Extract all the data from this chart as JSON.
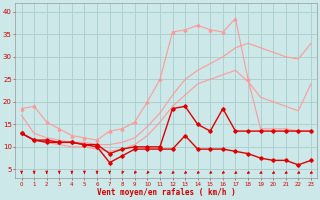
{
  "background_color": "#cce8e8",
  "grid_color": "#aacccc",
  "xlabel": "Vent moyen/en rafales ( km/h )",
  "xlabel_color": "#cc0000",
  "tick_color": "#cc0000",
  "ylim": [
    3,
    42
  ],
  "xlim": [
    -0.5,
    23.5
  ],
  "yticks": [
    5,
    10,
    15,
    20,
    25,
    30,
    35,
    40
  ],
  "xticks": [
    0,
    1,
    2,
    3,
    4,
    5,
    6,
    7,
    8,
    9,
    10,
    11,
    12,
    13,
    14,
    15,
    16,
    17,
    18,
    19,
    20,
    21,
    22,
    23
  ],
  "x": [
    0,
    1,
    2,
    3,
    4,
    5,
    6,
    7,
    8,
    9,
    10,
    11,
    12,
    13,
    14,
    15,
    16,
    17,
    18,
    19,
    20,
    21,
    22,
    23
  ],
  "light_color": "#ff9999",
  "dark_color": "#dd0000",
  "series_light_tri": [
    18.5,
    19.0,
    15.5,
    14.0,
    12.5,
    12.0,
    11.5,
    13.5,
    14.0,
    15.5,
    20.0,
    25.0,
    35.5,
    36.0,
    37.0,
    36.0,
    35.5,
    38.5,
    25.0,
    14.0,
    14.0,
    14.0,
    13.5,
    13.5
  ],
  "series_light2": [
    17.0,
    13.0,
    12.0,
    11.5,
    11.0,
    11.0,
    10.5,
    10.5,
    11.0,
    12.0,
    14.5,
    17.5,
    21.5,
    25.0,
    27.0,
    28.5,
    30.0,
    32.0,
    33.0,
    32.0,
    31.0,
    30.0,
    29.5,
    33.0
  ],
  "series_light3": [
    13.0,
    11.5,
    11.0,
    10.5,
    10.0,
    10.0,
    9.5,
    9.0,
    9.5,
    10.5,
    12.5,
    15.5,
    19.0,
    21.5,
    24.0,
    25.0,
    26.0,
    27.0,
    24.5,
    21.0,
    20.0,
    19.0,
    18.0,
    24.0
  ],
  "series_dark1": [
    13.0,
    11.5,
    11.5,
    11.0,
    11.0,
    10.5,
    10.5,
    8.5,
    9.5,
    10.0,
    10.0,
    10.0,
    18.5,
    19.0,
    15.0,
    13.5,
    18.5,
    13.5,
    13.5,
    13.5,
    13.5,
    13.5,
    13.5,
    13.5
  ],
  "series_dark2": [
    13.0,
    11.5,
    11.0,
    11.0,
    11.0,
    10.5,
    10.0,
    6.5,
    8.0,
    9.5,
    9.5,
    9.5,
    9.5,
    12.5,
    9.5,
    9.5,
    9.5,
    9.0,
    8.5,
    7.5,
    7.0,
    7.0,
    6.0,
    7.0
  ],
  "arrow_angles_deg": [
    270,
    270,
    270,
    270,
    270,
    270,
    270,
    270,
    260,
    255,
    250,
    245,
    245,
    245,
    245,
    245,
    245,
    240,
    240,
    240,
    240,
    240,
    240,
    240
  ]
}
